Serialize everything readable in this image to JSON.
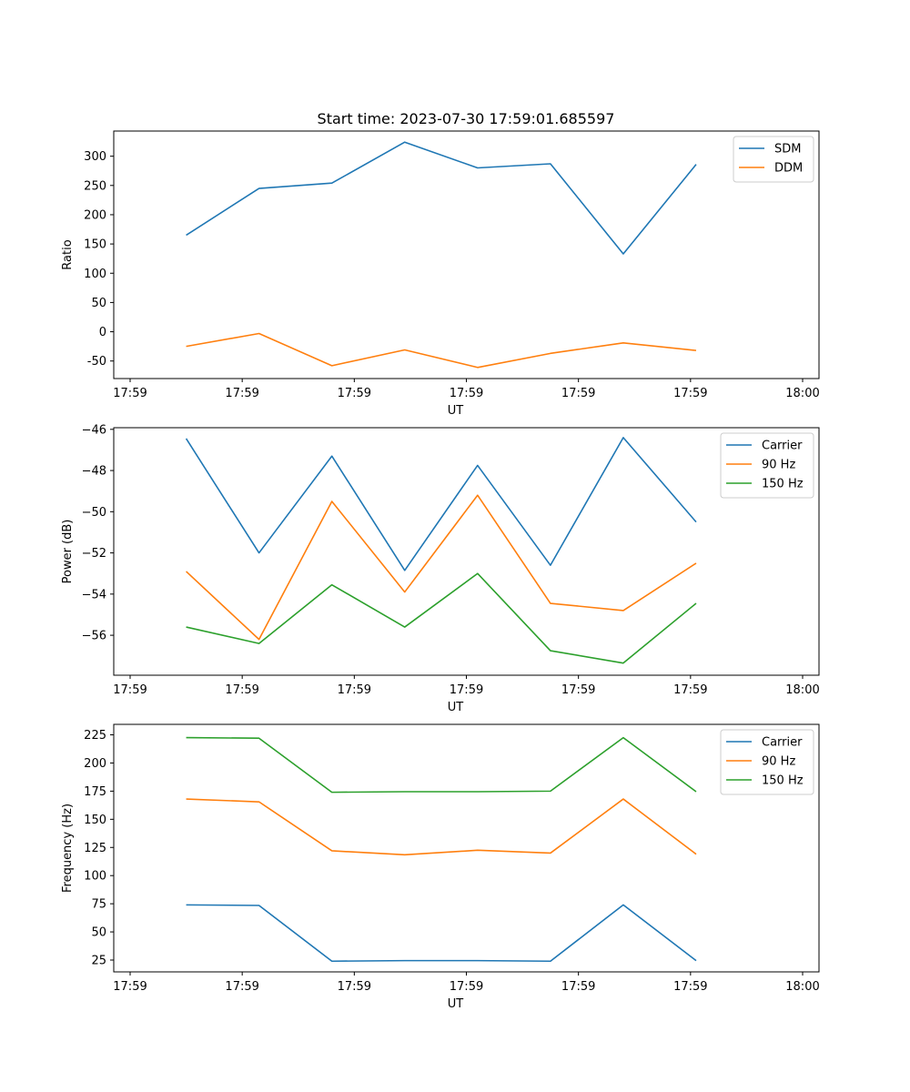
{
  "figure_title": "Start time: 2023-07-30 17:59:01.685597",
  "colors": {
    "blue": "#1f77b4",
    "orange": "#ff7f0e",
    "green": "#2ca02c"
  },
  "chart_data": [
    {
      "type": "line",
      "title": "Start time: 2023-07-30 17:59:01.685597",
      "xlabel": "UT",
      "ylabel": "Ratio",
      "x": [
        0.5,
        1.15,
        1.8,
        2.45,
        3.1,
        3.75,
        4.4,
        5.05
      ],
      "xlim": [
        0,
        6
      ],
      "x_ticks": [
        0,
        1,
        2,
        3,
        4,
        5,
        6
      ],
      "x_tick_labels": [
        "17:59",
        "17:59",
        "17:59",
        "17:59",
        "17:59",
        "17:59",
        "18:00"
      ],
      "ylim": [
        -80,
        343
      ],
      "y_ticks": [
        -50,
        0,
        50,
        100,
        150,
        200,
        250,
        300
      ],
      "legend_position": "top-right",
      "series": [
        {
          "name": "SDM",
          "color": "#1f77b4",
          "values": [
            165,
            245,
            254,
            324,
            280,
            287,
            133,
            286
          ]
        },
        {
          "name": "DDM",
          "color": "#ff7f0e",
          "values": [
            -25,
            -3,
            -58,
            -31,
            -61,
            -37,
            -19,
            -32
          ]
        }
      ]
    },
    {
      "type": "line",
      "title": "",
      "xlabel": "UT",
      "ylabel": "Power (dB)",
      "x": [
        0.5,
        1.15,
        1.8,
        2.45,
        3.1,
        3.75,
        4.4,
        5.05
      ],
      "xlim": [
        0,
        6
      ],
      "x_ticks": [
        0,
        1,
        2,
        3,
        4,
        5,
        6
      ],
      "x_tick_labels": [
        "17:59",
        "17:59",
        "17:59",
        "17:59",
        "17:59",
        "17:59",
        "18:00"
      ],
      "ylim": [
        -57.94,
        -45.92
      ],
      "y_ticks": [
        -56,
        -54,
        -52,
        -50,
        -48,
        -46
      ],
      "y_tick_labels": [
        "−56",
        "−54",
        "−52",
        "−50",
        "−48",
        "−46"
      ],
      "legend_position": "top-right",
      "series": [
        {
          "name": "Carrier",
          "color": "#1f77b4",
          "values": [
            -46.45,
            -52.0,
            -47.3,
            -52.85,
            -47.75,
            -52.6,
            -46.4,
            -50.5
          ]
        },
        {
          "name": "90 Hz",
          "color": "#ff7f0e",
          "values": [
            -52.9,
            -56.2,
            -49.5,
            -53.9,
            -49.2,
            -54.45,
            -54.8,
            -52.5
          ]
        },
        {
          "name": "150 Hz",
          "color": "#2ca02c",
          "values": [
            -55.6,
            -56.4,
            -53.55,
            -55.6,
            -53.0,
            -56.75,
            -57.35,
            -54.45
          ]
        }
      ]
    },
    {
      "type": "line",
      "title": "",
      "xlabel": "UT",
      "ylabel": "Frequency (Hz)",
      "x": [
        0.5,
        1.15,
        1.8,
        2.45,
        3.1,
        3.75,
        4.4,
        5.05
      ],
      "xlim": [
        0,
        6
      ],
      "x_ticks": [
        0,
        1,
        2,
        3,
        4,
        5,
        6
      ],
      "x_tick_labels": [
        "17:59",
        "17:59",
        "17:59",
        "17:59",
        "17:59",
        "17:59",
        "18:00"
      ],
      "ylim": [
        14.5,
        234.3
      ],
      "y_ticks": [
        25,
        50,
        75,
        100,
        125,
        150,
        175,
        200,
        225
      ],
      "legend_position": "top-right",
      "series": [
        {
          "name": "Carrier",
          "color": "#1f77b4",
          "values": [
            74,
            73.5,
            24,
            24.5,
            24.5,
            24,
            74,
            24.5
          ]
        },
        {
          "name": "90 Hz",
          "color": "#ff7f0e",
          "values": [
            168,
            165.5,
            122,
            118.5,
            122.5,
            120,
            168,
            119
          ]
        },
        {
          "name": "150 Hz",
          "color": "#2ca02c",
          "values": [
            222.5,
            222,
            174,
            174.5,
            174.5,
            175,
            222.5,
            174.5
          ]
        }
      ]
    }
  ]
}
